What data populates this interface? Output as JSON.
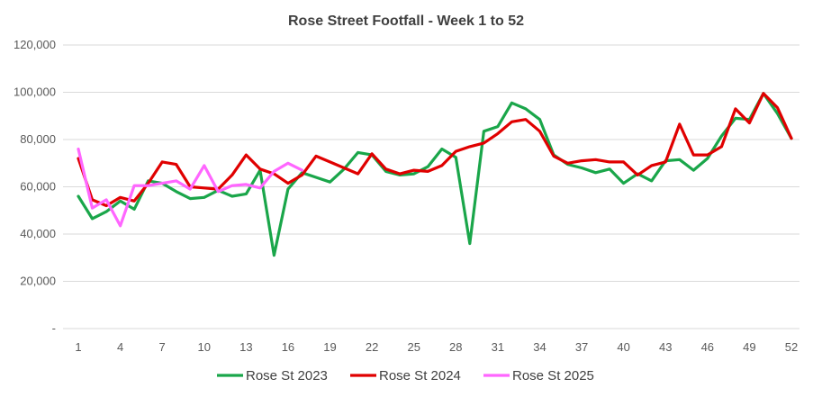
{
  "chart_data": {
    "type": "line",
    "title": "Rose Street Footfall - Week 1 to 52",
    "xlabel": "",
    "ylabel": "",
    "ylim": [
      0,
      120000
    ],
    "yticks": [
      {
        "value": 0,
        "label": "-"
      },
      {
        "value": 20000,
        "label": "20,000"
      },
      {
        "value": 40000,
        "label": "40,000"
      },
      {
        "value": 60000,
        "label": "60,000"
      },
      {
        "value": 80000,
        "label": "80,000"
      },
      {
        "value": 100000,
        "label": "100,000"
      },
      {
        "value": 120000,
        "label": "120,000"
      }
    ],
    "xticks": [
      1,
      4,
      7,
      10,
      13,
      16,
      19,
      22,
      25,
      28,
      31,
      34,
      37,
      40,
      43,
      46,
      49,
      52
    ],
    "grid": "horizontal",
    "legend_position": "bottom",
    "series": [
      {
        "name": "Rose St 2023",
        "color": "#1aa64a",
        "x": [
          1,
          2,
          3,
          4,
          5,
          6,
          7,
          8,
          9,
          10,
          11,
          12,
          13,
          14,
          15,
          16,
          17,
          18,
          19,
          20,
          21,
          22,
          23,
          24,
          25,
          26,
          27,
          28,
          29,
          30,
          31,
          32,
          33,
          34,
          35,
          36,
          37,
          38,
          39,
          40,
          41,
          42,
          43,
          44,
          45,
          46,
          47,
          48,
          49,
          50,
          51,
          52
        ],
        "values": [
          56000,
          46500,
          49500,
          54000,
          50500,
          62500,
          61500,
          58000,
          55000,
          55500,
          58500,
          56000,
          57000,
          67000,
          31000,
          59000,
          66000,
          64000,
          62000,
          67500,
          74500,
          73500,
          66500,
          65000,
          65500,
          68500,
          76000,
          72500,
          36000,
          83500,
          85500,
          95500,
          93000,
          88500,
          73500,
          69500,
          68000,
          66000,
          67500,
          61500,
          65500,
          62500,
          71000,
          71500,
          67000,
          72000,
          81500,
          89000,
          88500,
          99500,
          91000,
          80500
        ]
      },
      {
        "name": "Rose St 2024",
        "color": "#e00000",
        "x": [
          1,
          2,
          3,
          4,
          5,
          6,
          7,
          8,
          9,
          10,
          11,
          12,
          13,
          14,
          15,
          16,
          17,
          18,
          19,
          20,
          21,
          22,
          23,
          24,
          25,
          26,
          27,
          28,
          29,
          30,
          31,
          32,
          33,
          34,
          35,
          36,
          37,
          38,
          39,
          40,
          41,
          42,
          43,
          44,
          45,
          46,
          47,
          48,
          49,
          50,
          51,
          52
        ],
        "values": [
          72000,
          54500,
          52000,
          55500,
          54000,
          61500,
          70500,
          69500,
          60000,
          59500,
          59000,
          65000,
          73500,
          67500,
          65500,
          61500,
          65000,
          73000,
          70500,
          68000,
          65500,
          74000,
          67500,
          65500,
          67000,
          66500,
          69000,
          75000,
          77000,
          78500,
          82500,
          87500,
          88500,
          83500,
          73000,
          70000,
          71000,
          71500,
          70500,
          70500,
          65000,
          69000,
          70500,
          86500,
          73500,
          73500,
          77000,
          93000,
          87000,
          99500,
          93500,
          80500
        ]
      },
      {
        "name": "Rose St 2025",
        "color": "#ff66ff",
        "x": [
          1,
          2,
          3,
          4,
          5,
          6,
          7,
          8,
          9,
          10,
          11,
          12,
          13,
          14,
          15,
          16,
          17
        ],
        "values": [
          76000,
          51000,
          54500,
          43500,
          60500,
          60500,
          61500,
          62500,
          59000,
          69000,
          58000,
          60500,
          61000,
          59500,
          66500,
          70000,
          67000
        ]
      }
    ]
  }
}
